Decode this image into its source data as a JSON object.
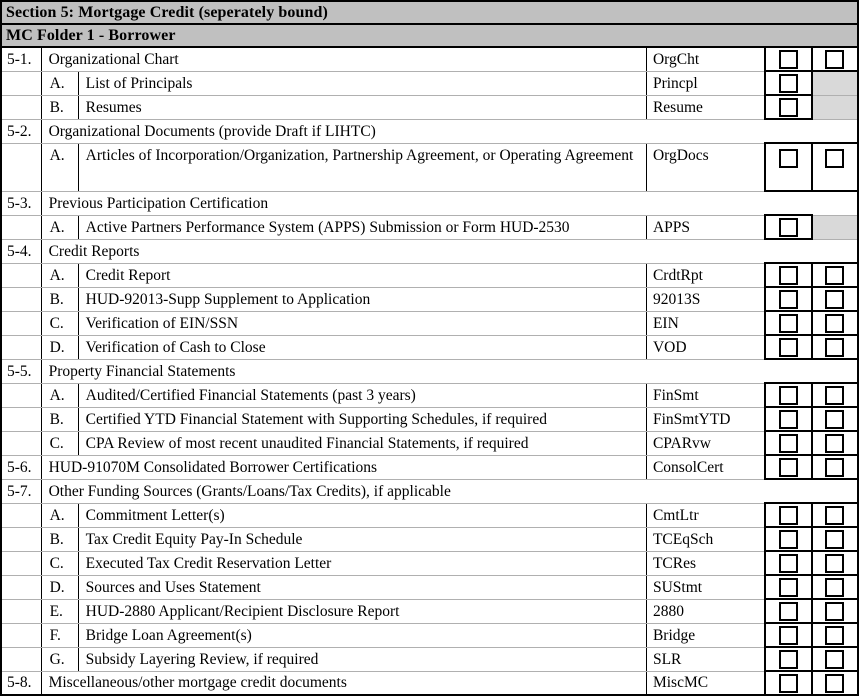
{
  "document": {
    "section_header": "Section 5: Mortgage Credit (seperately bound)",
    "folder_header": "MC Folder 1 - Borrower",
    "colors": {
      "header_bg": "#c0c0c0",
      "disabled_cell_bg": "#d9d9d9",
      "grid_line": "#b0b0b0",
      "border": "#000000"
    },
    "checkbox_state": "unchecked",
    "rows": [
      {
        "type": "main",
        "num": "5-1.",
        "desc": "Organizational Chart",
        "code": "OrgCht",
        "cb1": "box",
        "cb2": "box"
      },
      {
        "type": "sub",
        "letter": "A.",
        "desc": "List of Principals",
        "code": "Princpl",
        "cb1": "box",
        "cb2": "gray"
      },
      {
        "type": "sub",
        "letter": "B.",
        "desc": "Resumes",
        "code": "Resume",
        "cb1": "box",
        "cb2": "gray"
      },
      {
        "type": "span",
        "num": "5-2.",
        "desc": "Organizational Documents (provide Draft if LIHTC)"
      },
      {
        "type": "sub",
        "letter": "A.",
        "desc": "Articles of Incorporation/Organization, Partnership Agreement, or Operating Agreement",
        "code": "OrgDocs",
        "cb1": "box",
        "cb2": "box",
        "tall": true
      },
      {
        "type": "span",
        "num": "5-3.",
        "desc": "Previous Participation Certification"
      },
      {
        "type": "sub",
        "letter": "A.",
        "desc": "Active Partners Performance System (APPS) Submission or Form HUD-2530",
        "code": "APPS",
        "cb1": "box",
        "cb2": "gray"
      },
      {
        "type": "span",
        "num": "5-4.",
        "desc": "Credit Reports"
      },
      {
        "type": "sub",
        "letter": "A.",
        "desc": "Credit Report",
        "code": "CrdtRpt",
        "cb1": "box",
        "cb2": "box"
      },
      {
        "type": "sub",
        "letter": "B.",
        "desc": "HUD-92013-Supp Supplement to Application",
        "code": "92013S",
        "cb1": "box",
        "cb2": "box"
      },
      {
        "type": "sub",
        "letter": "C.",
        "desc": "Verification of EIN/SSN",
        "code": "EIN",
        "cb1": "box",
        "cb2": "box"
      },
      {
        "type": "sub",
        "letter": "D.",
        "desc": "Verification of Cash to Close",
        "code": "VOD",
        "cb1": "box",
        "cb2": "box"
      },
      {
        "type": "span",
        "num": "5-5.",
        "desc": "Property Financial Statements"
      },
      {
        "type": "sub",
        "letter": "A.",
        "desc": "Audited/Certified Financial Statements (past 3 years)",
        "code": "FinSmt",
        "cb1": "box",
        "cb2": "box"
      },
      {
        "type": "sub",
        "letter": "B.",
        "desc": "Certified YTD Financial Statement with Supporting Schedules, if required",
        "code": "FinSmtYTD",
        "cb1": "box",
        "cb2": "box"
      },
      {
        "type": "sub",
        "letter": "C.",
        "desc": "CPA Review of most recent unaudited Financial Statements, if required",
        "code": "CPARvw",
        "cb1": "box",
        "cb2": "box"
      },
      {
        "type": "main",
        "num": "5-6.",
        "desc": "HUD-91070M Consolidated Borrower Certifications",
        "code": "ConsolCert",
        "cb1": "box",
        "cb2": "box"
      },
      {
        "type": "span",
        "num": "5-7.",
        "desc": "Other Funding Sources (Grants/Loans/Tax Credits), if applicable"
      },
      {
        "type": "sub",
        "letter": "A.",
        "desc": "Commitment Letter(s)",
        "code": "CmtLtr",
        "cb1": "box",
        "cb2": "box"
      },
      {
        "type": "sub",
        "letter": "B.",
        "desc": "Tax Credit Equity Pay-In Schedule",
        "code": "TCEqSch",
        "cb1": "box",
        "cb2": "box"
      },
      {
        "type": "sub",
        "letter": "C.",
        "desc": "Executed Tax Credit Reservation Letter",
        "code": "TCRes",
        "cb1": "box",
        "cb2": "box"
      },
      {
        "type": "sub",
        "letter": "D.",
        "desc": "Sources and Uses Statement",
        "code": "SUStmt",
        "cb1": "box",
        "cb2": "box"
      },
      {
        "type": "sub",
        "letter": "E.",
        "desc": "HUD-2880 Applicant/Recipient Disclosure Report",
        "code": "2880",
        "cb1": "box",
        "cb2": "box"
      },
      {
        "type": "sub",
        "letter": "F.",
        "desc": "Bridge Loan Agreement(s)",
        "code": "Bridge",
        "cb1": "box",
        "cb2": "box"
      },
      {
        "type": "sub",
        "letter": "G.",
        "desc": "Subsidy Layering Review, if required",
        "code": "SLR",
        "cb1": "box",
        "cb2": "box"
      },
      {
        "type": "main",
        "num": "5-8.",
        "desc": "Miscellaneous/other mortgage credit documents",
        "code": "MiscMC",
        "cb1": "box",
        "cb2": "box"
      }
    ]
  }
}
